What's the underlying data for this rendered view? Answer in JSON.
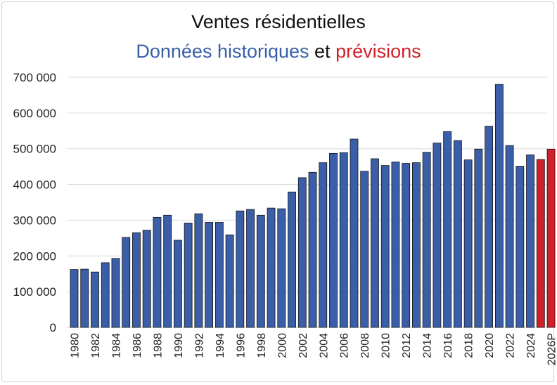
{
  "chart_data": {
    "type": "bar",
    "title": "Ventes résidentielles",
    "subtitle": {
      "part1": "Données historiques",
      "part2": "et",
      "part3": "prévisions",
      "color1": "#3a5fa8",
      "color2": "#111111",
      "color3": "#d0202a"
    },
    "categories": [
      "1980",
      "1981",
      "1982",
      "1983",
      "1984",
      "1985",
      "1986",
      "1987",
      "1988",
      "1989",
      "1990",
      "1991",
      "1992",
      "1993",
      "1994",
      "1995",
      "1996",
      "1997",
      "1998",
      "1999",
      "2000",
      "2001",
      "2002",
      "2003",
      "2004",
      "2005",
      "2006",
      "2007",
      "2008",
      "2009",
      "2010",
      "2011",
      "2012",
      "2013",
      "2014",
      "2015",
      "2016",
      "2017",
      "2018",
      "2019",
      "2020",
      "2021",
      "2022",
      "2023",
      "2024",
      "2025",
      "2026P"
    ],
    "x_tick_labels": [
      "1980",
      "",
      "1982",
      "",
      "1984",
      "",
      "1986",
      "",
      "1988",
      "",
      "1990",
      "",
      "1992",
      "",
      "1994",
      "",
      "1996",
      "",
      "1998",
      "",
      "2000",
      "",
      "2002",
      "",
      "2004",
      "",
      "2006",
      "",
      "2008",
      "",
      "2010",
      "",
      "2012",
      "",
      "2014",
      "",
      "2016",
      "",
      "2018",
      "",
      "2020",
      "",
      "2022",
      "",
      "2024",
      "",
      "2026P"
    ],
    "values": [
      162000,
      163000,
      155000,
      181000,
      193000,
      252000,
      265000,
      272000,
      308000,
      314000,
      244000,
      292000,
      318000,
      294000,
      294000,
      259000,
      326000,
      330000,
      314000,
      334000,
      332000,
      379000,
      419000,
      434000,
      461000,
      487000,
      489000,
      527000,
      437000,
      472000,
      453000,
      463000,
      459000,
      461000,
      490000,
      516000,
      548000,
      523000,
      469000,
      499000,
      563000,
      680000,
      509000,
      451000,
      483000,
      470000,
      499000
    ],
    "bar_colors": {
      "historical": "#3a5fa8",
      "forecast": "#d0202a"
    },
    "forecast_categories": [
      "2025",
      "2026P"
    ],
    "y_ticks": [
      "0",
      "100 000",
      "200 000",
      "300 000",
      "400 000",
      "500 000",
      "600 000",
      "700 000"
    ],
    "ylim": [
      0,
      700000
    ],
    "grid": true,
    "gridline_color": "#d9d9d9"
  }
}
